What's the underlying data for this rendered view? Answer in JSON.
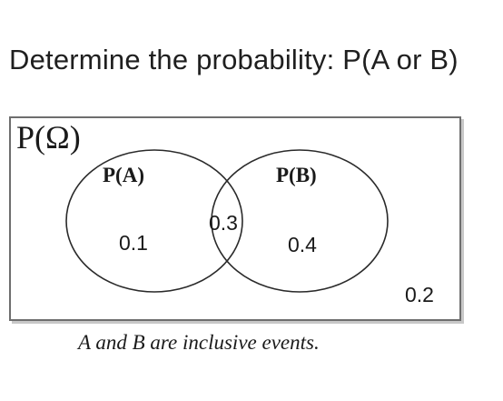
{
  "question": {
    "text": "Determine the probability: P(A or B)"
  },
  "venn": {
    "universe_label": "P(Ω)",
    "set_a_label": "P(A)",
    "set_b_label": "P(B)",
    "region_a_only": "0.1",
    "region_intersection": "0.3",
    "region_b_only": "0.4",
    "region_outside": "0.2",
    "caption": "A and B are inclusive events."
  }
}
